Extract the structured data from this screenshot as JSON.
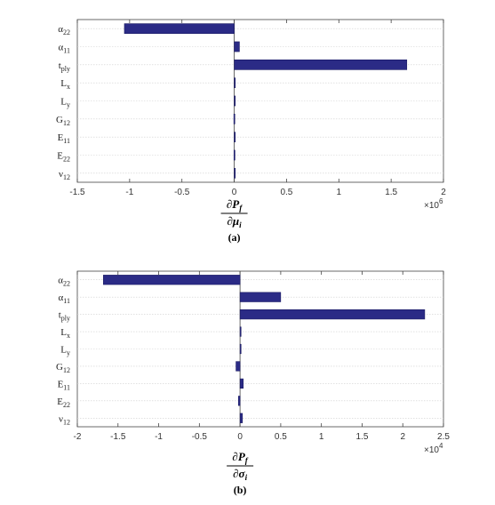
{
  "colors": {
    "bar": "#2b2b86",
    "bar_edge": "#14145a",
    "grid": "#cfcfcf",
    "axis": "#444444"
  },
  "chart_data": [
    {
      "type": "bar",
      "orientation": "horizontal",
      "caption": "(a)",
      "xlabel": {
        "num": "∂P",
        "num_sub": "f",
        "den": "∂μ",
        "den_sub": "i"
      },
      "categories": [
        {
          "base": "α",
          "sub": "22"
        },
        {
          "base": "α",
          "sub": "11"
        },
        {
          "base": "t",
          "sub": "ply"
        },
        {
          "base": "L",
          "sub": "x"
        },
        {
          "base": "L",
          "sub": "y"
        },
        {
          "base": "G",
          "sub": "12"
        },
        {
          "base": "E",
          "sub": "11"
        },
        {
          "base": "E",
          "sub": "22"
        },
        {
          "base": "ν",
          "sub": "12"
        }
      ],
      "values": [
        -1.05,
        0.05,
        1.65,
        0.005,
        0.003,
        -0.004,
        0.006,
        -0.003,
        0.003
      ],
      "xlim": [
        -1.5,
        2
      ],
      "xticks": [
        -1.5,
        -1,
        -0.5,
        0,
        0.5,
        1,
        1.5,
        2
      ],
      "xtick_labels": [
        "-1.5",
        "-1",
        "-0.5",
        "0",
        "0.5",
        "1",
        "1.5",
        "2"
      ],
      "multiplier": {
        "base": "×10",
        "exp": "6"
      },
      "grid": true
    },
    {
      "type": "bar",
      "orientation": "horizontal",
      "caption": "(b)",
      "xlabel": {
        "num": "∂P",
        "num_sub": "f",
        "den": "∂σ",
        "den_sub": "i"
      },
      "categories": [
        {
          "base": "α",
          "sub": "22"
        },
        {
          "base": "α",
          "sub": "11"
        },
        {
          "base": "t",
          "sub": "ply"
        },
        {
          "base": "L",
          "sub": "x"
        },
        {
          "base": "L",
          "sub": "y"
        },
        {
          "base": "G",
          "sub": "12"
        },
        {
          "base": "E",
          "sub": "11"
        },
        {
          "base": "E",
          "sub": "22"
        },
        {
          "base": "ν",
          "sub": "12"
        }
      ],
      "values": [
        -1.68,
        0.5,
        2.27,
        0.01,
        0.01,
        -0.05,
        0.04,
        -0.02,
        0.03
      ],
      "xlim": [
        -2,
        2.5
      ],
      "xticks": [
        -2,
        -1.5,
        -1,
        -0.5,
        0,
        0.5,
        1,
        1.5,
        2,
        2.5
      ],
      "xtick_labels": [
        "-2",
        "-1.5",
        "-1",
        "-0.5",
        "0",
        "0.5",
        "1",
        "1.5",
        "2",
        "2.5"
      ],
      "multiplier": {
        "base": "×10",
        "exp": "4"
      },
      "grid": true
    }
  ]
}
